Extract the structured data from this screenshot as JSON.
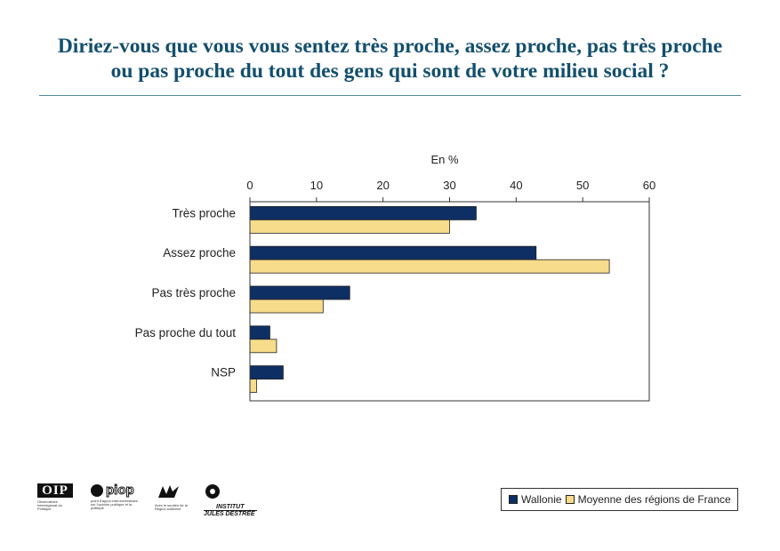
{
  "title_line1": "Diriez-vous que vous vous sentez très proche, assez proche, pas très proche",
  "title_line2": "ou pas proche du tout des gens qui sont de votre milieu social ?",
  "colors": {
    "title": "#134f6e",
    "rule": "#4f8aa3",
    "wallonie": "#0e2f63",
    "france": "#f7dc8b"
  },
  "chart_data": {
    "type": "bar",
    "orientation": "horizontal",
    "unit_label": "En %",
    "categories": [
      "Très proche",
      "Assez proche",
      "Pas très proche",
      "Pas proche du tout",
      "NSP"
    ],
    "series": [
      {
        "name": "Wallonie",
        "values": [
          34,
          43,
          15,
          3,
          5
        ]
      },
      {
        "name": "Moyenne des régions de France",
        "values": [
          30,
          54,
          11,
          4,
          1
        ]
      }
    ],
    "xlim": [
      0,
      60
    ],
    "ticks": [
      0,
      10,
      20,
      30,
      40,
      50,
      60
    ],
    "tick_labels": [
      "0",
      "10",
      "20",
      "30",
      "40",
      "50",
      "60"
    ],
    "legend_position": "bottom-right",
    "grid": false
  },
  "legend": {
    "wallonie": "Wallonie",
    "france": "Moyenne des régions de France"
  },
  "logos": {
    "oip": "OIP",
    "oip_caption": "Observatoire Interrégional du Politique",
    "piop": "piop",
    "piop_caption": "point d'appui interuniversitaire sur l'opinion publique et la politique",
    "wallonie_caption": "Avec le soutien de la Région wallonne",
    "ijd_line1": "INSTITUT",
    "ijd_line2": "JULES DESTRÉE"
  }
}
